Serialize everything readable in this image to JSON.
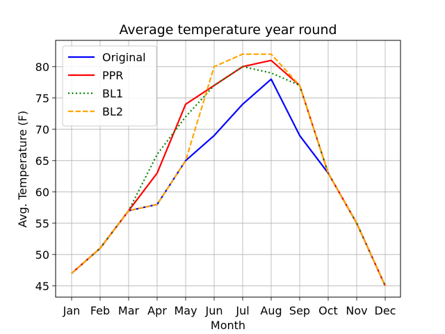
{
  "chart_data": {
    "type": "line",
    "title": "Average temperature year round",
    "xlabel": "Month",
    "ylabel": "Avg. Temperature (F)",
    "categories": [
      "Jan",
      "Feb",
      "Mar",
      "Apr",
      "May",
      "Jun",
      "Jul",
      "Aug",
      "Sep",
      "Oct",
      "Nov",
      "Dec"
    ],
    "ylim": [
      43.2,
      84.2
    ],
    "yticks": [
      45,
      50,
      55,
      60,
      65,
      70,
      75,
      80
    ],
    "grid": true,
    "legend_position": "top-left",
    "series": [
      {
        "name": "Original",
        "color": "#0000ff",
        "style": "solid",
        "values": [
          47,
          51,
          57,
          58,
          65,
          69,
          74,
          78,
          69,
          63,
          55,
          45
        ]
      },
      {
        "name": "PPR",
        "color": "#ff0000",
        "style": "solid",
        "values": [
          47,
          51,
          57,
          63,
          74,
          77,
          80,
          81,
          77,
          63,
          55,
          45
        ]
      },
      {
        "name": "BL1",
        "color": "#008000",
        "style": "dotted",
        "values": [
          47,
          51,
          57,
          66,
          72,
          77,
          80,
          79,
          77,
          63,
          55,
          45
        ]
      },
      {
        "name": "BL2",
        "color": "#ffa500",
        "style": "dashed",
        "values": [
          47,
          51,
          57,
          58,
          65,
          80,
          82,
          82,
          77,
          63,
          55,
          45
        ]
      }
    ]
  }
}
